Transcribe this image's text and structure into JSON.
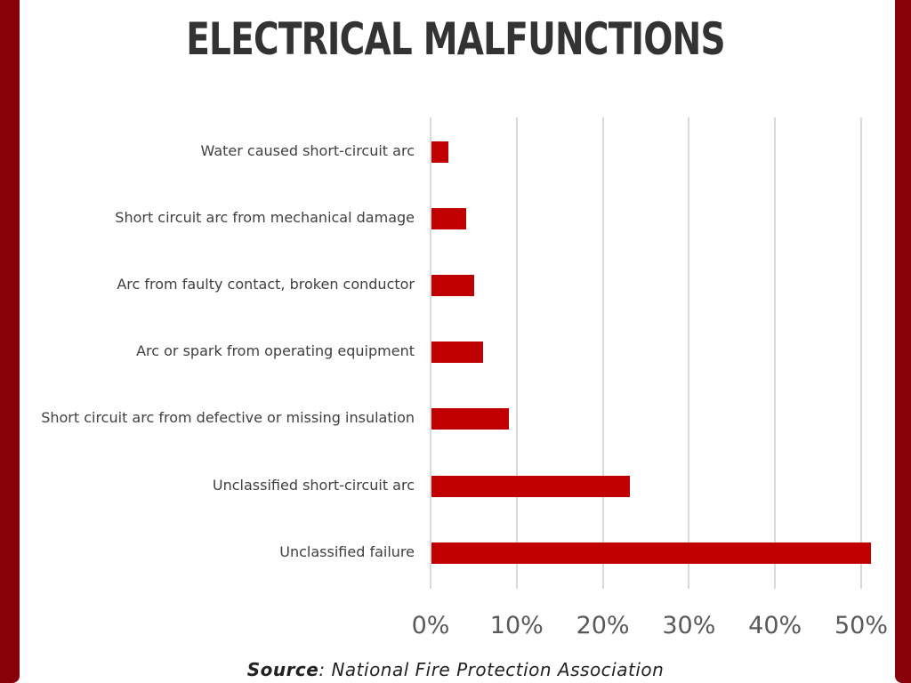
{
  "title": "ELECTRICAL MALFUNCTIONS",
  "source": {
    "label": "Source",
    "text": ": National Fire Protection Association"
  },
  "colors": {
    "bar": "#c00000",
    "border": "#880008",
    "title": "#333333",
    "grid": "#d9d9d9"
  },
  "axis": {
    "ticks": [
      "0%",
      "10%",
      "20%",
      "30%",
      "40%",
      "50%"
    ]
  },
  "categories": [
    "Water caused short-circuit arc",
    "Short circuit arc from mechanical damage",
    "Arc from faulty contact, broken conductor",
    "Arc or spark from operating equipment",
    "Short circuit arc from defective or missing insulation",
    "Unclassified short-circuit arc",
    "Unclassified failure"
  ],
  "chart_data": {
    "type": "bar",
    "orientation": "horizontal",
    "title": "ELECTRICAL MALFUNCTIONS",
    "categories": [
      "Water caused short-circuit arc",
      "Short circuit arc from mechanical damage",
      "Arc from faulty contact, broken conductor",
      "Arc or spark from operating equipment",
      "Short circuit arc from defective or missing insulation",
      "Unclassified short-circuit arc",
      "Unclassified failure"
    ],
    "values": [
      2,
      4,
      5,
      6,
      9,
      23,
      51
    ],
    "unit": "%",
    "xlabel": "",
    "ylabel": "",
    "xlim": [
      0,
      50
    ],
    "xticks": [
      "0%",
      "10%",
      "20%",
      "30%",
      "40%",
      "50%"
    ],
    "grid": "vertical",
    "legend": "none",
    "annotation": "Source: National Fire Protection Association"
  }
}
